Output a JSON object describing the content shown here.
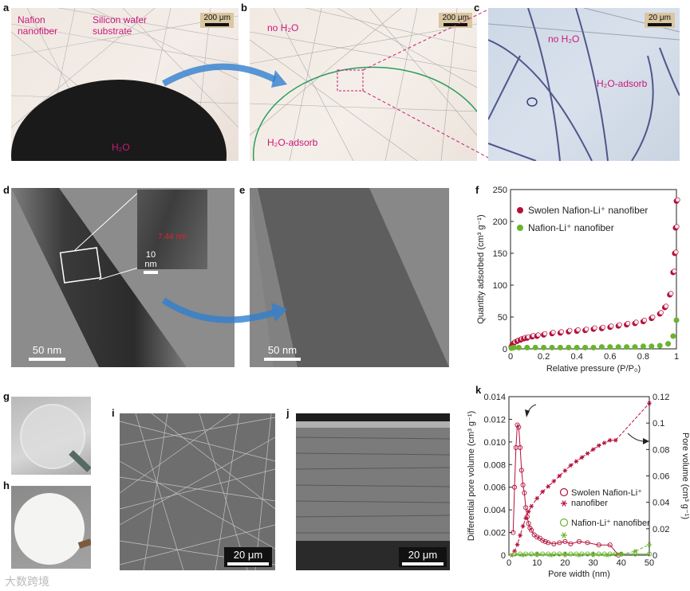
{
  "panels": {
    "a": {
      "label": "a",
      "text1": "Nafion nanofiber",
      "text2": "Silicon wafer substrate",
      "drop": "H₂O",
      "scale": "200 μm"
    },
    "b": {
      "label": "b",
      "text1": "no H₂O",
      "text2": "H₂O-adsorb",
      "scale": "200 μm"
    },
    "c": {
      "label": "c",
      "text1": "no H₂O",
      "text2": "H₂O-adsorb",
      "scale": "20 μm"
    },
    "d": {
      "label": "d",
      "scale": "50 nm",
      "inset_scale": "10 nm",
      "inset_measure": "7.44 nm"
    },
    "e": {
      "label": "e",
      "scale": "50 nm"
    },
    "g": {
      "label": "g"
    },
    "h": {
      "label": "h"
    },
    "i": {
      "label": "i",
      "scale": "20 μm"
    },
    "j": {
      "label": "j",
      "scale": "20 μm"
    },
    "f": {
      "label": "f"
    },
    "k": {
      "label": "k"
    }
  },
  "watermark": "大数跨境",
  "colors": {
    "swolen": "#b5103c",
    "nafion": "#6ab42d",
    "accent": "#c8197a",
    "arrow": "#2f7fd0"
  },
  "chart_data": [
    {
      "id": "f",
      "type": "scatter",
      "xlabel": "Relative pressure (P/P₀)",
      "ylabel": "Quantity adsorbed (cm³ g⁻¹)",
      "xlim": [
        0,
        1
      ],
      "ylim": [
        0,
        250
      ],
      "xticks": [
        "0",
        "0.2",
        "0.4",
        "0.6",
        "0.8",
        "1"
      ],
      "yticks": [
        "0",
        "50",
        "100",
        "150",
        "200",
        "250"
      ],
      "legend": "top-left",
      "series": [
        {
          "name": "Swolen Nafion-Li⁺ nanofiber",
          "color": "#b5103c",
          "x": [
            0.005,
            0.01,
            0.02,
            0.04,
            0.06,
            0.08,
            0.1,
            0.13,
            0.16,
            0.2,
            0.25,
            0.3,
            0.35,
            0.4,
            0.45,
            0.5,
            0.55,
            0.6,
            0.65,
            0.7,
            0.75,
            0.8,
            0.85,
            0.9,
            0.93,
            0.96,
            0.98,
            0.99,
            0.995,
            1.0
          ],
          "y": [
            3,
            6,
            9,
            12,
            14,
            16,
            17,
            19,
            20,
            22,
            24,
            25,
            27,
            28,
            29,
            31,
            32,
            34,
            36,
            38,
            40,
            43,
            48,
            55,
            65,
            85,
            120,
            150,
            190,
            232
          ]
        },
        {
          "name": "Nafion-Li⁺ nanofiber",
          "color": "#6ab42d",
          "x": [
            0.005,
            0.02,
            0.05,
            0.1,
            0.15,
            0.2,
            0.25,
            0.3,
            0.35,
            0.4,
            0.45,
            0.5,
            0.55,
            0.6,
            0.65,
            0.7,
            0.75,
            0.8,
            0.85,
            0.9,
            0.95,
            0.98,
            1.0
          ],
          "y": [
            1,
            2,
            2,
            2,
            2,
            2,
            2,
            2,
            2,
            2,
            2,
            2,
            3,
            3,
            3,
            3,
            3,
            4,
            4,
            5,
            8,
            20,
            45
          ]
        }
      ]
    },
    {
      "id": "k",
      "type": "line",
      "xlabel": "Pore width (nm)",
      "ylabel": "Differential pore volume (cm³ g⁻¹)",
      "y2label": "Pore volume (cm³ g⁻¹)",
      "xlim": [
        0,
        50
      ],
      "ylim": [
        0,
        0.014
      ],
      "y2lim": [
        0,
        0.12
      ],
      "xticks": [
        "0",
        "10",
        "20",
        "30",
        "40",
        "50"
      ],
      "yticks": [
        "0",
        "0.002",
        "0.004",
        "0.006",
        "0.008",
        "0.010",
        "0.012",
        "0.014"
      ],
      "y2ticks": [
        "0",
        "0.02",
        "0.04",
        "0.06",
        "0.08",
        "0.1",
        "0.12"
      ],
      "legend": "right",
      "series": [
        {
          "name": "Swolen Nafion-Li⁺ nanofiber",
          "color": "#b5103c",
          "axis": "left",
          "marker": "circle",
          "x": [
            1.5,
            2.0,
            2.5,
            3.0,
            3.5,
            4.0,
            4.5,
            5.0,
            5.5,
            6.0,
            6.5,
            7.0,
            7.5,
            8.0,
            9.0,
            10.0,
            11.0,
            12.0,
            13.0,
            14.0,
            16.0,
            18.0,
            20.0,
            22.0,
            25.0,
            28.0,
            32.0,
            36.0,
            39.0
          ],
          "y": [
            0.002,
            0.006,
            0.0095,
            0.0115,
            0.0113,
            0.0095,
            0.0075,
            0.0062,
            0.0055,
            0.0042,
            0.0034,
            0.0028,
            0.0024,
            0.0022,
            0.0018,
            0.0016,
            0.0015,
            0.0013,
            0.0012,
            0.0011,
            0.001,
            0.0011,
            0.0012,
            0.001,
            0.0012,
            0.0011,
            0.0009,
            0.0009,
            0.0
          ]
        },
        {
          "name": "Swolen Nafion-Li⁺ nanofiber",
          "color": "#b5103c",
          "axis": "right",
          "marker": "star",
          "x": [
            1.0,
            2.0,
            3.0,
            4.0,
            5.0,
            6.0,
            7.0,
            8.0,
            10.0,
            12.0,
            14.0,
            16.0,
            18.0,
            20.0,
            22.0,
            24.0,
            26.0,
            28.0,
            30.0,
            32.0,
            34.0,
            36.0,
            38.0,
            50.0
          ],
          "y": [
            0.0,
            0.003,
            0.008,
            0.015,
            0.022,
            0.028,
            0.033,
            0.037,
            0.043,
            0.048,
            0.052,
            0.056,
            0.06,
            0.064,
            0.068,
            0.071,
            0.074,
            0.077,
            0.08,
            0.083,
            0.085,
            0.087,
            0.087,
            0.115
          ]
        },
        {
          "name": "Nafion-Li⁺ nanofiber",
          "color": "#6ab42d",
          "axis": "left",
          "marker": "circle",
          "x": [
            2,
            4,
            6,
            8,
            10,
            12,
            14,
            16,
            18,
            20,
            22,
            24,
            26,
            28,
            30,
            32,
            34,
            36,
            38,
            40,
            45,
            50
          ],
          "y": [
            0.0001,
            0.0001,
            0.0001,
            0.0001,
            0.0001,
            0.0001,
            0.0001,
            0.0001,
            0.0001,
            0.0001,
            0.0001,
            0.0001,
            0.0001,
            0.0001,
            0.0001,
            0.0001,
            0.0001,
            0.0001,
            0.0001,
            0.0001,
            0.0001,
            0.0001
          ]
        },
        {
          "name": "Nafion-Li⁺ nanofiber",
          "color": "#6ab42d",
          "axis": "right",
          "marker": "star",
          "x": [
            1,
            5,
            10,
            15,
            20,
            25,
            30,
            35,
            40,
            45,
            50
          ],
          "y": [
            0.0,
            0.0,
            0.0,
            0.0,
            0.0,
            0.0,
            0.0,
            0.0,
            0.0005,
            0.003,
            0.008
          ]
        }
      ]
    }
  ]
}
